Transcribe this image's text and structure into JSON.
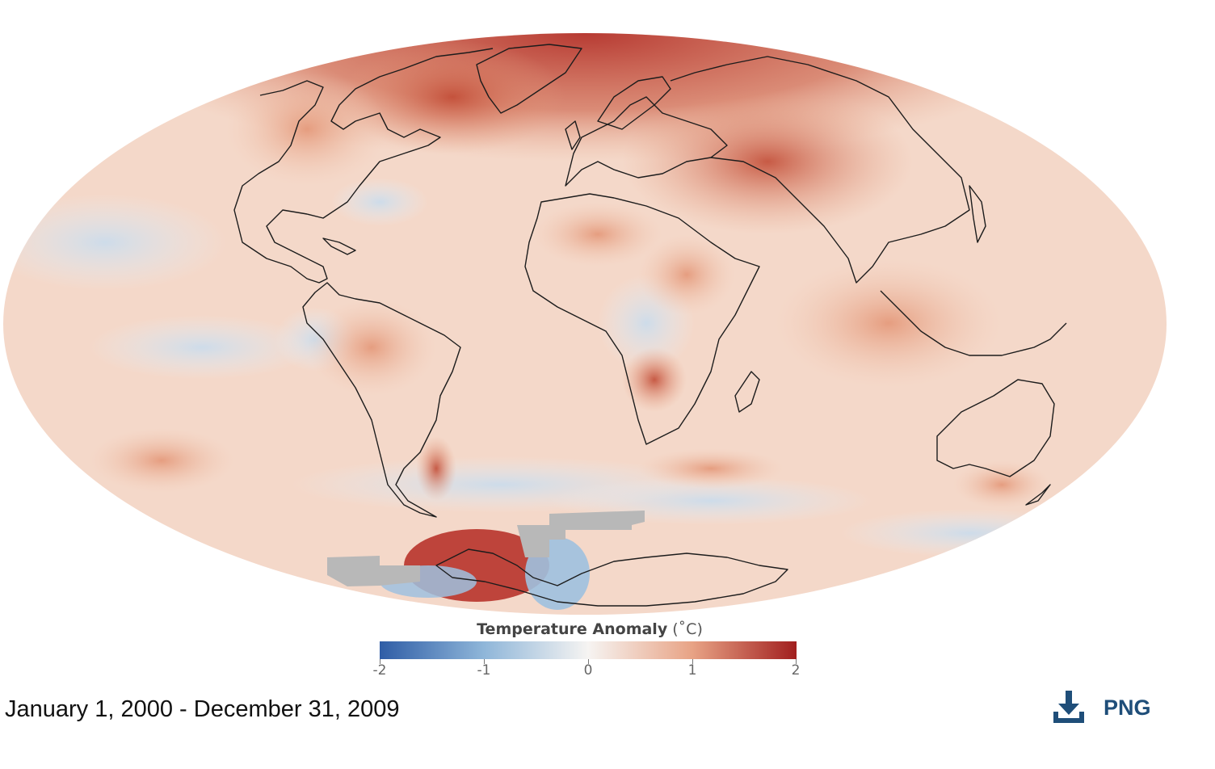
{
  "map": {
    "projection": "Mollweide",
    "color_scale": {
      "min": -2,
      "max": 2,
      "stops": [
        {
          "value": -2,
          "color": "#2f5da6"
        },
        {
          "value": -1,
          "color": "#8fb6d9"
        },
        {
          "value": 0,
          "color": "#f6f4f2"
        },
        {
          "value": 1,
          "color": "#e8a385"
        },
        {
          "value": 2,
          "color": "#a11e1e"
        }
      ],
      "no_data_color": "#b8b8b8"
    },
    "coastline_color": "#1c1c1c"
  },
  "legend": {
    "title": "Temperature Anomaly",
    "unit": "(˚C)",
    "ticks": [
      "-2",
      "-1",
      "0",
      "1",
      "2"
    ]
  },
  "caption": {
    "date_range": "January 1, 2000 - December 31, 2009"
  },
  "download": {
    "label": "PNG",
    "icon": "download-icon",
    "color": "#1f4e79"
  }
}
